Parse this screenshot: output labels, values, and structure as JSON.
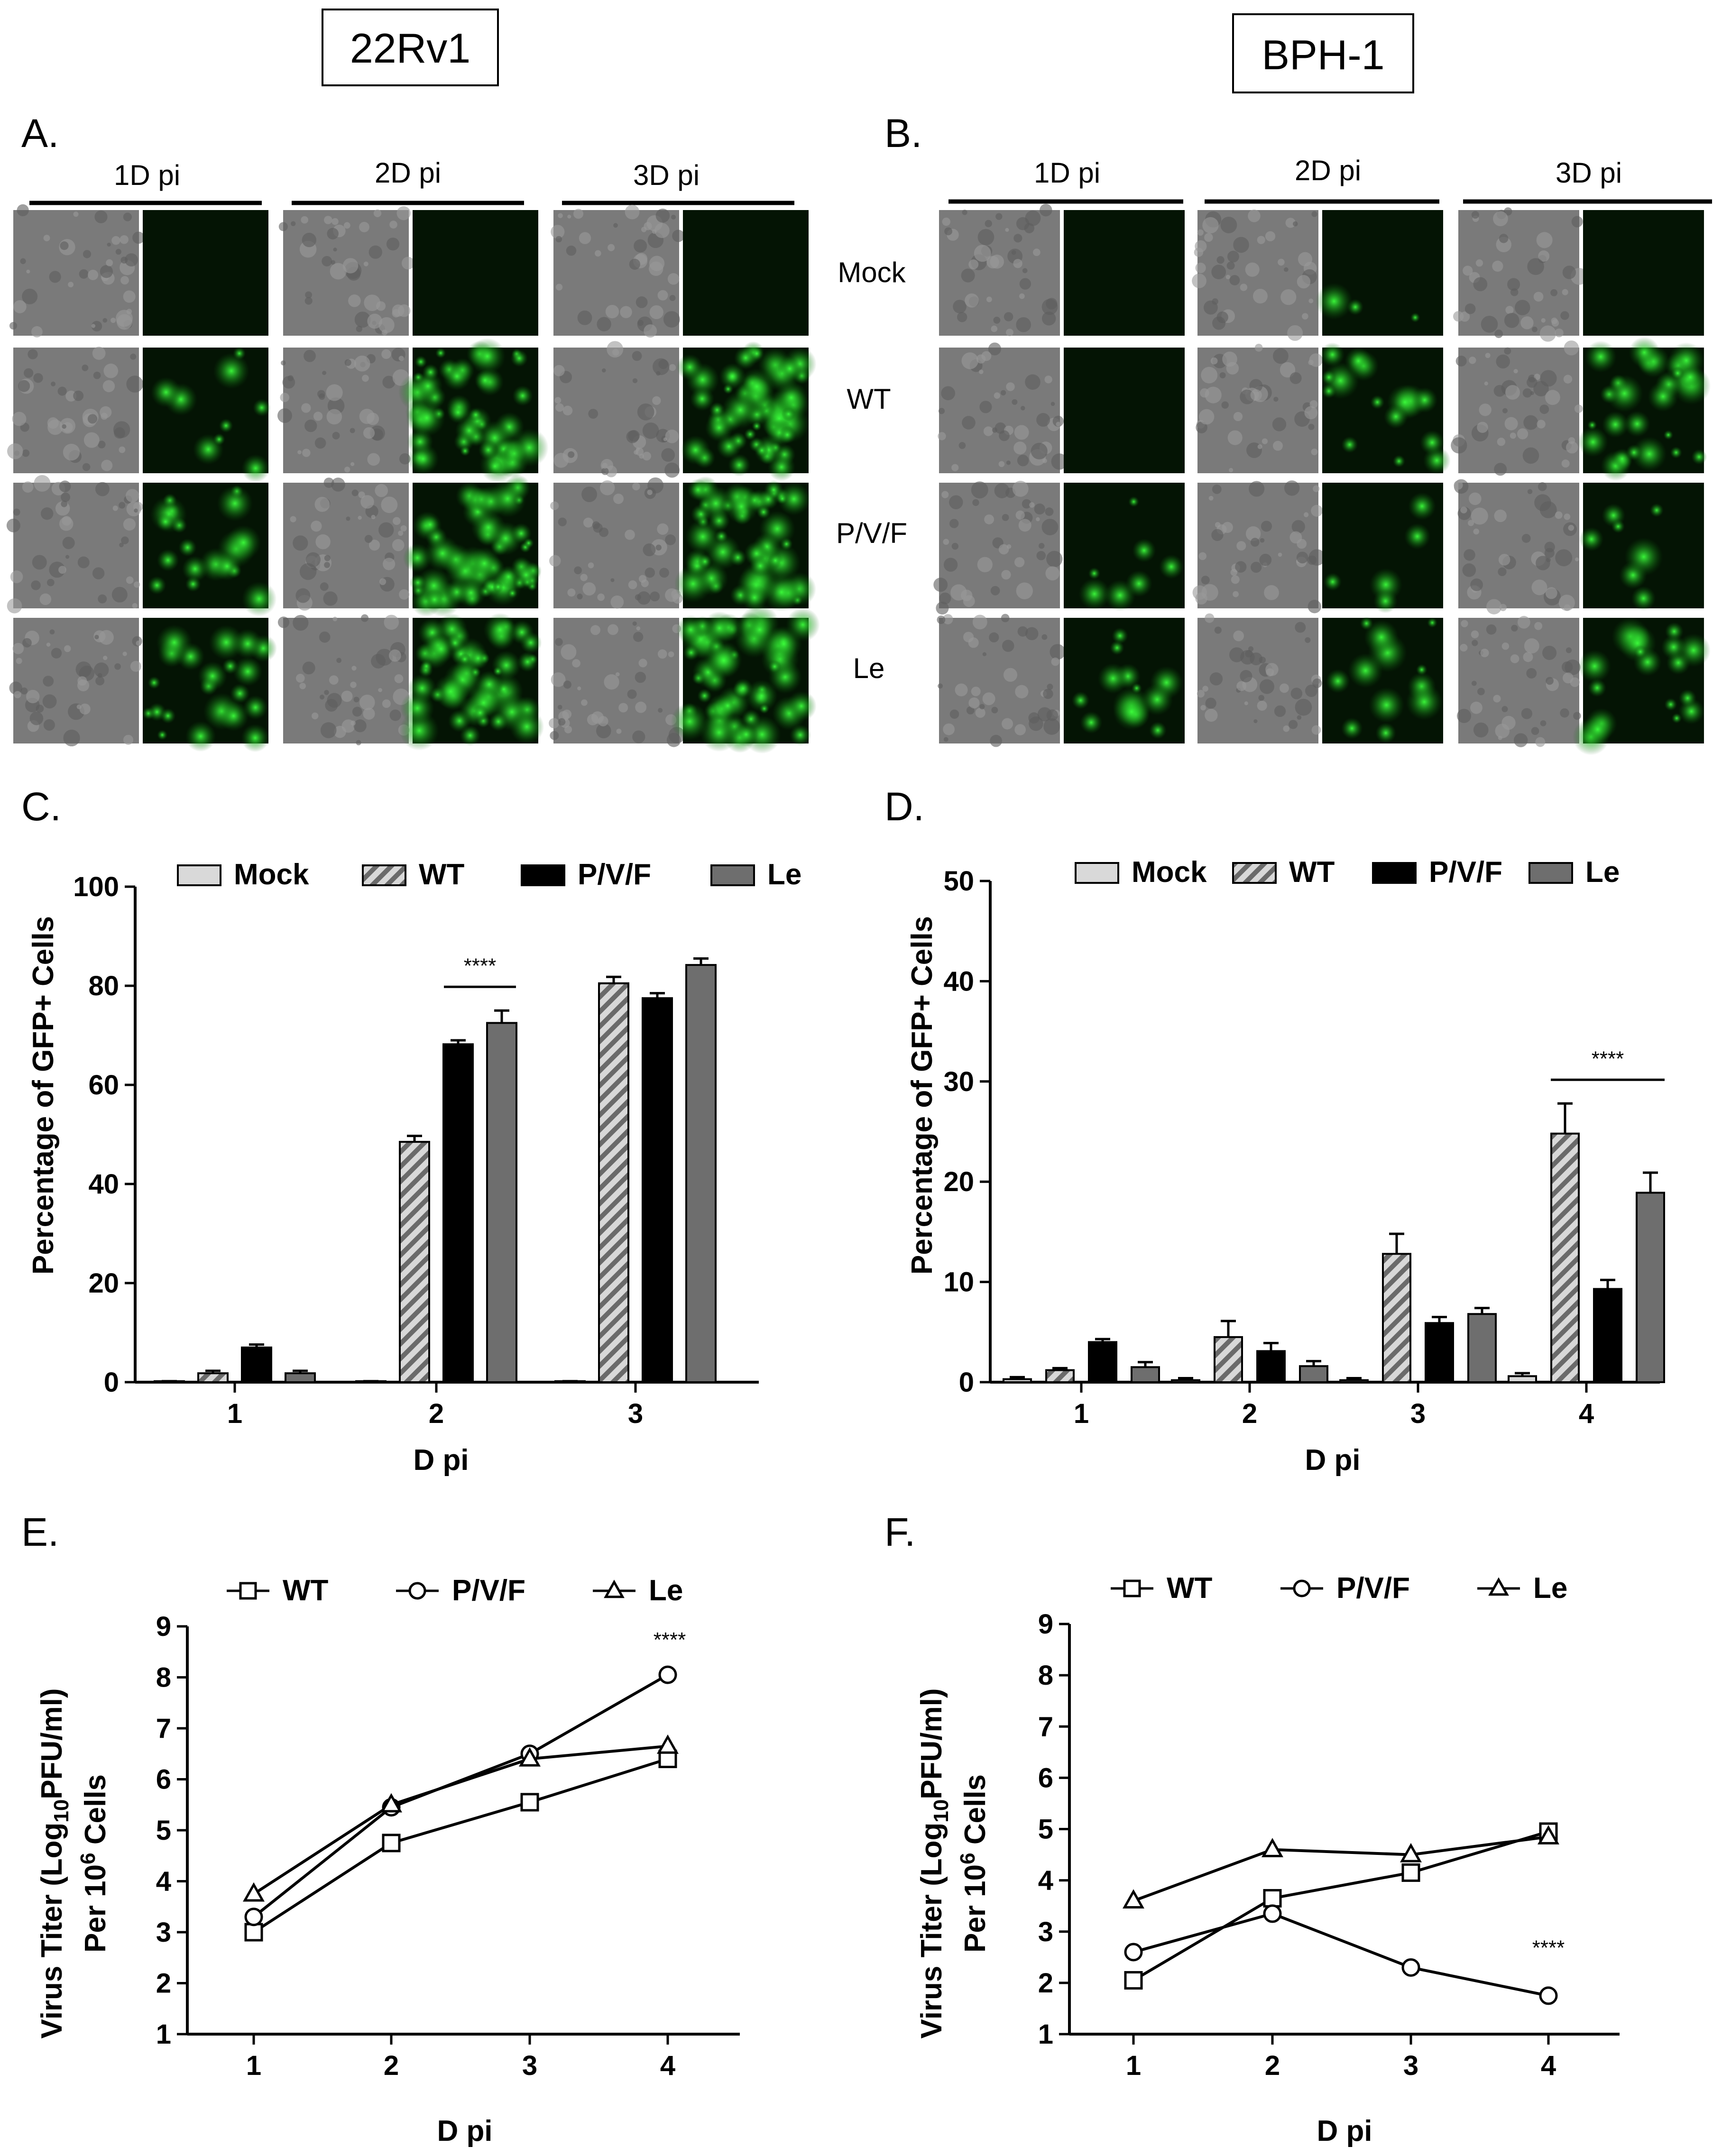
{
  "cell_lines": [
    "22Rv1",
    "BPH-1"
  ],
  "panels": {
    "A": {
      "letter": "A.",
      "time_labels": [
        "1D pi",
        "2D pi",
        "3D pi"
      ],
      "row_labels": [
        "Mock",
        "WT",
        "P/V/F",
        "Le"
      ]
    },
    "B": {
      "letter": "B.",
      "time_labels": [
        "1D pi",
        "2D pi",
        "3D pi"
      ]
    },
    "C": {
      "letter": "C."
    },
    "D": {
      "letter": "D."
    },
    "E": {
      "letter": "E."
    },
    "F": {
      "letter": "F."
    }
  },
  "micrograph_intensity": {
    "A": [
      [
        0,
        0,
        0
      ],
      [
        0.15,
        0.75,
        0.85
      ],
      [
        0.3,
        0.85,
        0.8
      ],
      [
        0.35,
        0.8,
        0.85
      ]
    ],
    "B": [
      [
        0,
        0.05,
        0
      ],
      [
        0,
        0.25,
        0.45
      ],
      [
        0.12,
        0.08,
        0.12
      ],
      [
        0.22,
        0.2,
        0.3
      ]
    ]
  },
  "colors": {
    "mock": "#d9d9d9",
    "wt_light": "#d8d8d8",
    "wt_dark": "#6a6a6a",
    "pvf": "#000000",
    "le": "#6e6e6e",
    "gfp": "#2fd22f",
    "phase": "#7a7a7a"
  },
  "chart_data": [
    {
      "id": "C",
      "type": "bar",
      "categories": [
        "1",
        "2",
        "3"
      ],
      "series": [
        {
          "name": "Mock",
          "values": [
            0.2,
            0.2,
            0.2
          ],
          "errors": [
            0,
            0,
            0
          ]
        },
        {
          "name": "WT",
          "values": [
            1.8,
            48.5,
            80.5
          ],
          "errors": [
            0.5,
            1.2,
            1.3
          ]
        },
        {
          "name": "P/V/F",
          "values": [
            7.0,
            68.2,
            77.5
          ],
          "errors": [
            0.6,
            0.8,
            1.0
          ]
        },
        {
          "name": "Le",
          "values": [
            1.8,
            72.5,
            84.2
          ],
          "errors": [
            0.5,
            2.5,
            1.3
          ]
        }
      ],
      "xlabel": "D pi",
      "ylabel": "Percentage of GFP+ Cells",
      "ylim": [
        0,
        100
      ],
      "yticks": [
        0,
        20,
        40,
        60,
        80,
        100
      ],
      "annotation": "****",
      "annotation_span": [
        "2",
        "P/V/F",
        "Le"
      ],
      "legend_position": "top"
    },
    {
      "id": "D",
      "type": "bar",
      "categories": [
        "1",
        "2",
        "3",
        "4"
      ],
      "series": [
        {
          "name": "Mock",
          "values": [
            0.3,
            0.2,
            0.2,
            0.6
          ],
          "errors": [
            0.2,
            0.2,
            0.2,
            0.3
          ]
        },
        {
          "name": "WT",
          "values": [
            1.2,
            4.5,
            12.8,
            24.8
          ],
          "errors": [
            0.2,
            1.6,
            2.0,
            3.0
          ]
        },
        {
          "name": "P/V/F",
          "values": [
            4.0,
            3.1,
            5.9,
            9.3
          ],
          "errors": [
            0.3,
            0.8,
            0.6,
            0.9
          ]
        },
        {
          "name": "Le",
          "values": [
            1.5,
            1.6,
            6.8,
            18.9
          ],
          "errors": [
            0.5,
            0.5,
            0.6,
            2.0
          ]
        }
      ],
      "xlabel": "D pi",
      "ylabel": "Percentage of GFP+ Cells",
      "ylim": [
        0,
        50
      ],
      "yticks": [
        0,
        10,
        20,
        30,
        40,
        50
      ],
      "annotation": "****",
      "annotation_span": [
        "4",
        "WT",
        "Le"
      ],
      "legend_position": "top"
    },
    {
      "id": "E",
      "type": "line",
      "x": [
        1,
        2,
        3,
        4
      ],
      "series": [
        {
          "name": "WT",
          "marker": "square",
          "values": [
            3.0,
            4.75,
            5.55,
            6.4
          ]
        },
        {
          "name": "P/V/F",
          "marker": "circle",
          "values": [
            3.3,
            5.45,
            6.5,
            8.05
          ]
        },
        {
          "name": "Le",
          "marker": "triangle",
          "values": [
            3.75,
            5.5,
            6.4,
            6.65
          ]
        }
      ],
      "xlabel": "D pi",
      "ylabel_line1": "Virus Titer (Log",
      "ylabel_sub": "10",
      "ylabel_line1_end": "PFU/ml)",
      "ylabel_line2_start": "Per 10",
      "ylabel_sup": "6",
      "ylabel_line2_end": " Cells",
      "ylim": [
        1,
        9
      ],
      "yticks": [
        1,
        2,
        3,
        4,
        5,
        6,
        7,
        8,
        9
      ],
      "annotation": "****",
      "legend_position": "top"
    },
    {
      "id": "F",
      "type": "line",
      "x": [
        1,
        2,
        3,
        4
      ],
      "series": [
        {
          "name": "WT",
          "marker": "square",
          "values": [
            2.05,
            3.65,
            4.15,
            4.95
          ]
        },
        {
          "name": "P/V/F",
          "marker": "circle",
          "values": [
            2.6,
            3.35,
            2.3,
            1.75
          ]
        },
        {
          "name": "Le",
          "marker": "triangle",
          "values": [
            3.6,
            4.6,
            4.5,
            4.85
          ]
        }
      ],
      "xlabel": "D pi",
      "ylabel_line1": "Virus Titer (Log",
      "ylabel_sub": "10",
      "ylabel_line1_end": "PFU/ml)",
      "ylabel_line2_start": "Per 10",
      "ylabel_sup": "6",
      "ylabel_line2_end": " Cells",
      "ylim": [
        1,
        9
      ],
      "yticks": [
        1,
        2,
        3,
        4,
        5,
        6,
        7,
        8,
        9
      ],
      "annotation": "****",
      "legend_position": "top"
    }
  ]
}
